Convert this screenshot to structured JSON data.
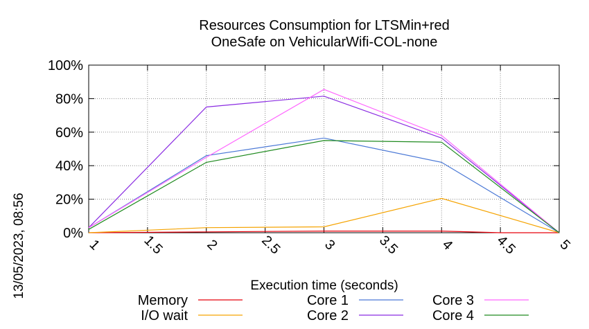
{
  "chart_data": {
    "type": "line",
    "title_lines": [
      "Resources Consumption for LTSMin+red",
      "OneSafe on VehicularWifi-COL-none"
    ],
    "xlabel": "Execution time (seconds)",
    "ylabel": "",
    "side_label": "13/05/2023, 08:56",
    "xlim": [
      1,
      5
    ],
    "ylim": [
      0,
      100
    ],
    "x_ticks": [
      "1",
      "1.5",
      "2",
      "2.5",
      "3",
      "3.5",
      "4",
      "4.5",
      "5"
    ],
    "y_ticks": [
      "0%",
      "20%",
      "40%",
      "60%",
      "80%",
      "100%"
    ],
    "grid": true,
    "legend_position": "bottom",
    "series": [
      {
        "name": "Memory",
        "color": "#e8000b",
        "x": [
          1,
          2,
          3,
          4,
          4.5,
          5
        ],
        "y": [
          0,
          0.5,
          1,
          1,
          0,
          0
        ]
      },
      {
        "name": "I/O wait",
        "color": "#f5a300",
        "x": [
          1,
          2,
          3,
          4,
          5
        ],
        "y": [
          0,
          3,
          3.5,
          20.5,
          0
        ]
      },
      {
        "name": "Core 1",
        "color": "#4a78d6",
        "x": [
          1,
          2,
          3,
          4,
          5
        ],
        "y": [
          3,
          46,
          56.5,
          42,
          0
        ]
      },
      {
        "name": "Core 2",
        "color": "#8a2be2",
        "x": [
          1,
          2,
          3,
          4,
          5
        ],
        "y": [
          3,
          75,
          81.5,
          56.5,
          0
        ]
      },
      {
        "name": "Core 3",
        "color": "#ff66ff",
        "x": [
          1,
          2,
          3,
          4,
          5
        ],
        "y": [
          3,
          45,
          85.5,
          58,
          0
        ]
      },
      {
        "name": "Core 4",
        "color": "#1f8a1f",
        "x": [
          1,
          2,
          3,
          4,
          5
        ],
        "y": [
          2,
          42,
          55,
          54,
          0
        ]
      }
    ]
  }
}
